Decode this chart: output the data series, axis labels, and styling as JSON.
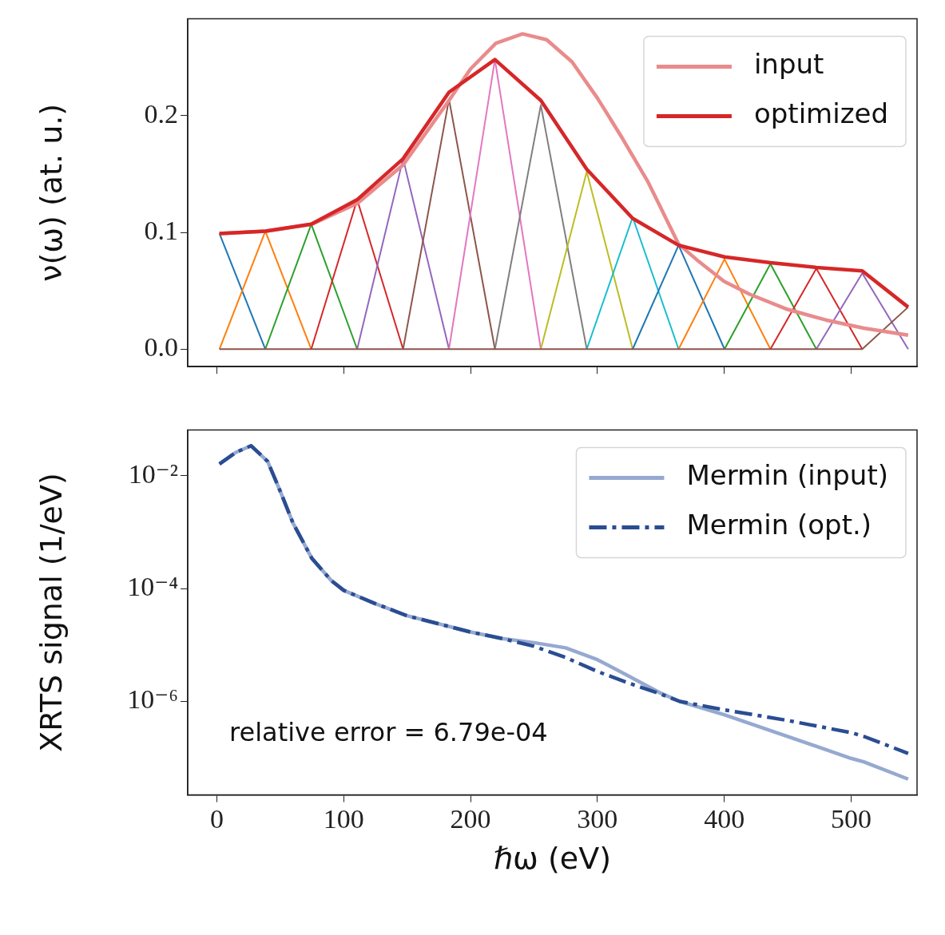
{
  "chart_data": [
    {
      "type": "line",
      "ylabel": "ν(ω) (at. u.)",
      "xlim": [
        -23,
        552
      ],
      "xticks": [
        {
          "value": 0,
          "label": null
        },
        {
          "value": 100,
          "label": null
        },
        {
          "value": 200,
          "label": null
        },
        {
          "value": 300,
          "label": null
        },
        {
          "value": 400,
          "label": null
        },
        {
          "value": 500,
          "label": null
        }
      ],
      "ylim": [
        -0.015,
        0.283
      ],
      "yticks": [
        {
          "value": 0,
          "label": "0.0"
        },
        {
          "value": 0.1,
          "label": "0.1"
        },
        {
          "value": 0.2,
          "label": "0.2"
        }
      ],
      "tick_labels": "y",
      "grid": false,
      "legend": "top right",
      "x": [
        2,
        38.2,
        74.4,
        110.6,
        146.8,
        183,
        219.2,
        255.4,
        291.6,
        327.8,
        364,
        400.2,
        436.4,
        472.6,
        508.8,
        545
      ],
      "series": [
        {
          "color": "#1f77b4",
          "x": [
            2,
            38.2
          ],
          "values": [
            0.099,
            0
          ]
        },
        {
          "color": "#ff7f0e",
          "x": [
            2,
            38.2,
            74.4
          ],
          "values": [
            0,
            0.101,
            0
          ]
        },
        {
          "color": "#2ca02c",
          "x": [
            38.2,
            74.4,
            110.6
          ],
          "values": [
            0,
            0.107,
            0
          ]
        },
        {
          "color": "#d62728",
          "x": [
            74.4,
            110.6,
            146.8
          ],
          "values": [
            0,
            0.128,
            0
          ]
        },
        {
          "color": "#9467bd",
          "x": [
            110.6,
            146.8,
            183
          ],
          "values": [
            0,
            0.163,
            0
          ]
        },
        {
          "color": "#8c564b",
          "x": [
            146.8,
            183,
            219.2
          ],
          "values": [
            0,
            0.214,
            0
          ]
        },
        {
          "color": "#e377c2",
          "x": [
            183,
            219.2,
            255.4
          ],
          "values": [
            0,
            0.248,
            0
          ]
        },
        {
          "color": "#7f7f7f",
          "x": [
            219.2,
            255.4,
            291.6
          ],
          "values": [
            0,
            0.209,
            0
          ]
        },
        {
          "color": "#bcbd22",
          "x": [
            255.4,
            291.6,
            327.8
          ],
          "values": [
            0,
            0.152,
            0
          ]
        },
        {
          "color": "#17becf",
          "x": [
            291.6,
            327.8,
            364
          ],
          "values": [
            0,
            0.113,
            0
          ]
        },
        {
          "color": "#1f77b4",
          "x": [
            327.8,
            364,
            400.2
          ],
          "values": [
            0,
            0.089,
            0
          ]
        },
        {
          "color": "#ff7f0e",
          "x": [
            364,
            400.2,
            436.4
          ],
          "values": [
            0,
            0.077,
            0
          ]
        },
        {
          "color": "#2ca02c",
          "x": [
            400.2,
            436.4,
            472.6
          ],
          "values": [
            0,
            0.073,
            0
          ]
        },
        {
          "color": "#d62728",
          "x": [
            436.4,
            472.6,
            508.8
          ],
          "values": [
            0,
            0.069,
            0
          ]
        },
        {
          "color": "#9467bd",
          "x": [
            472.6,
            508.8,
            545
          ],
          "values": [
            0,
            0.065,
            0
          ]
        },
        {
          "color": "#8c564b",
          "values": [
            0,
            0,
            0,
            0,
            0,
            0,
            0,
            0,
            0,
            0,
            0,
            0,
            0,
            0,
            0,
            0.036
          ]
        },
        {
          "name": "input",
          "color": "#e98b8c",
          "x": [
            2,
            39,
            75,
            111,
            147,
            183,
            200,
            220,
            241,
            260,
            280,
            300,
            320,
            340,
            364,
            380,
            400,
            420,
            450,
            480,
            510,
            545
          ],
          "values": [
            0.099,
            0.101,
            0.107,
            0.125,
            0.158,
            0.213,
            0.24,
            0.262,
            0.27,
            0.265,
            0.246,
            0.215,
            0.18,
            0.143,
            0.09,
            0.075,
            0.058,
            0.047,
            0.034,
            0.025,
            0.018,
            0.012
          ]
        },
        {
          "name": "optimized",
          "color": "#d62728",
          "values": [
            0.099,
            0.101,
            0.107,
            0.128,
            0.163,
            0.22,
            0.248,
            0.213,
            0.154,
            0.112,
            0.089,
            0.079,
            0.074,
            0.07,
            0.067,
            0.036
          ]
        }
      ]
    },
    {
      "type": "line",
      "xlabel": "ℏω (eV)",
      "ylabel": "XRTS signal (1/eV)",
      "xlim": [
        -23,
        552
      ],
      "xticks": [
        0,
        100,
        200,
        300,
        400,
        500
      ],
      "log": "y",
      "ylim": [
        2.2e-08,
        0.065
      ],
      "yticks": [
        {
          "value": 1e-06,
          "label": "10⁻⁶"
        },
        {
          "value": 0.0001,
          "label": "10⁻⁴"
        },
        {
          "value": 0.01,
          "label": "10⁻²"
        }
      ],
      "grid": false,
      "legend": "top right",
      "annotations": [
        "relative error = 6.79e-04"
      ],
      "x": [
        2,
        15,
        27,
        40,
        50,
        60,
        75,
        90,
        100,
        125,
        150,
        200,
        225,
        250,
        275,
        300,
        325,
        350,
        365,
        400,
        450,
        500,
        510,
        545
      ],
      "series": [
        {
          "name": "Mermin (input)",
          "color": "#96a9d0",
          "values": [
            0.0162,
            0.026,
            0.034,
            0.018,
            0.0053,
            0.00145,
            0.00034,
            0.00014,
            9.3e-05,
            5.4e-05,
            3.3e-05,
            1.7e-05,
            1.3e-05,
            1.1e-05,
            8.9e-06,
            5.5e-06,
            2.8e-06,
            1.4e-06,
            1e-06,
            5.8e-07,
            2.4e-07,
            9.8e-08,
            8.5e-08,
            4.2e-08
          ]
        },
        {
          "name": "Mermin (opt.)",
          "color": "#2a4d92",
          "line_style": "dashdot",
          "values": [
            0.0162,
            0.026,
            0.034,
            0.018,
            0.0053,
            0.00145,
            0.00034,
            0.00014,
            9.3e-05,
            5.4e-05,
            3.3e-05,
            1.7e-05,
            1.3e-05,
            9.5e-06,
            6e-06,
            3.4e-06,
            2.1e-06,
            1.35e-06,
            1e-06,
            7.1e-07,
            4.6e-07,
            2.8e-07,
            2.4e-07,
            1.2e-07
          ]
        }
      ]
    }
  ]
}
